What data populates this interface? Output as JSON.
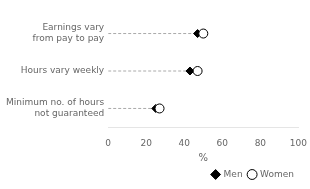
{
  "chart_data": {
    "type": "dot",
    "orientation": "horizontal",
    "categories": [
      "Earnings vary\nfrom pay to pay",
      "Hours vary weekly",
      "Minimum no. of hours\nnot guaranteed"
    ],
    "series": [
      {
        "name": "Men",
        "color": "#000000",
        "marker": "diamond",
        "values": [
          47,
          43,
          25
        ]
      },
      {
        "name": "Women",
        "color": "#ffffff",
        "marker": "circle",
        "values": [
          50,
          47,
          27
        ]
      }
    ],
    "xlabel": "%",
    "xlim": [
      0,
      100
    ],
    "xticks": [
      0,
      20,
      40,
      60,
      80,
      100
    ],
    "grid": false,
    "legend": "lower right"
  }
}
